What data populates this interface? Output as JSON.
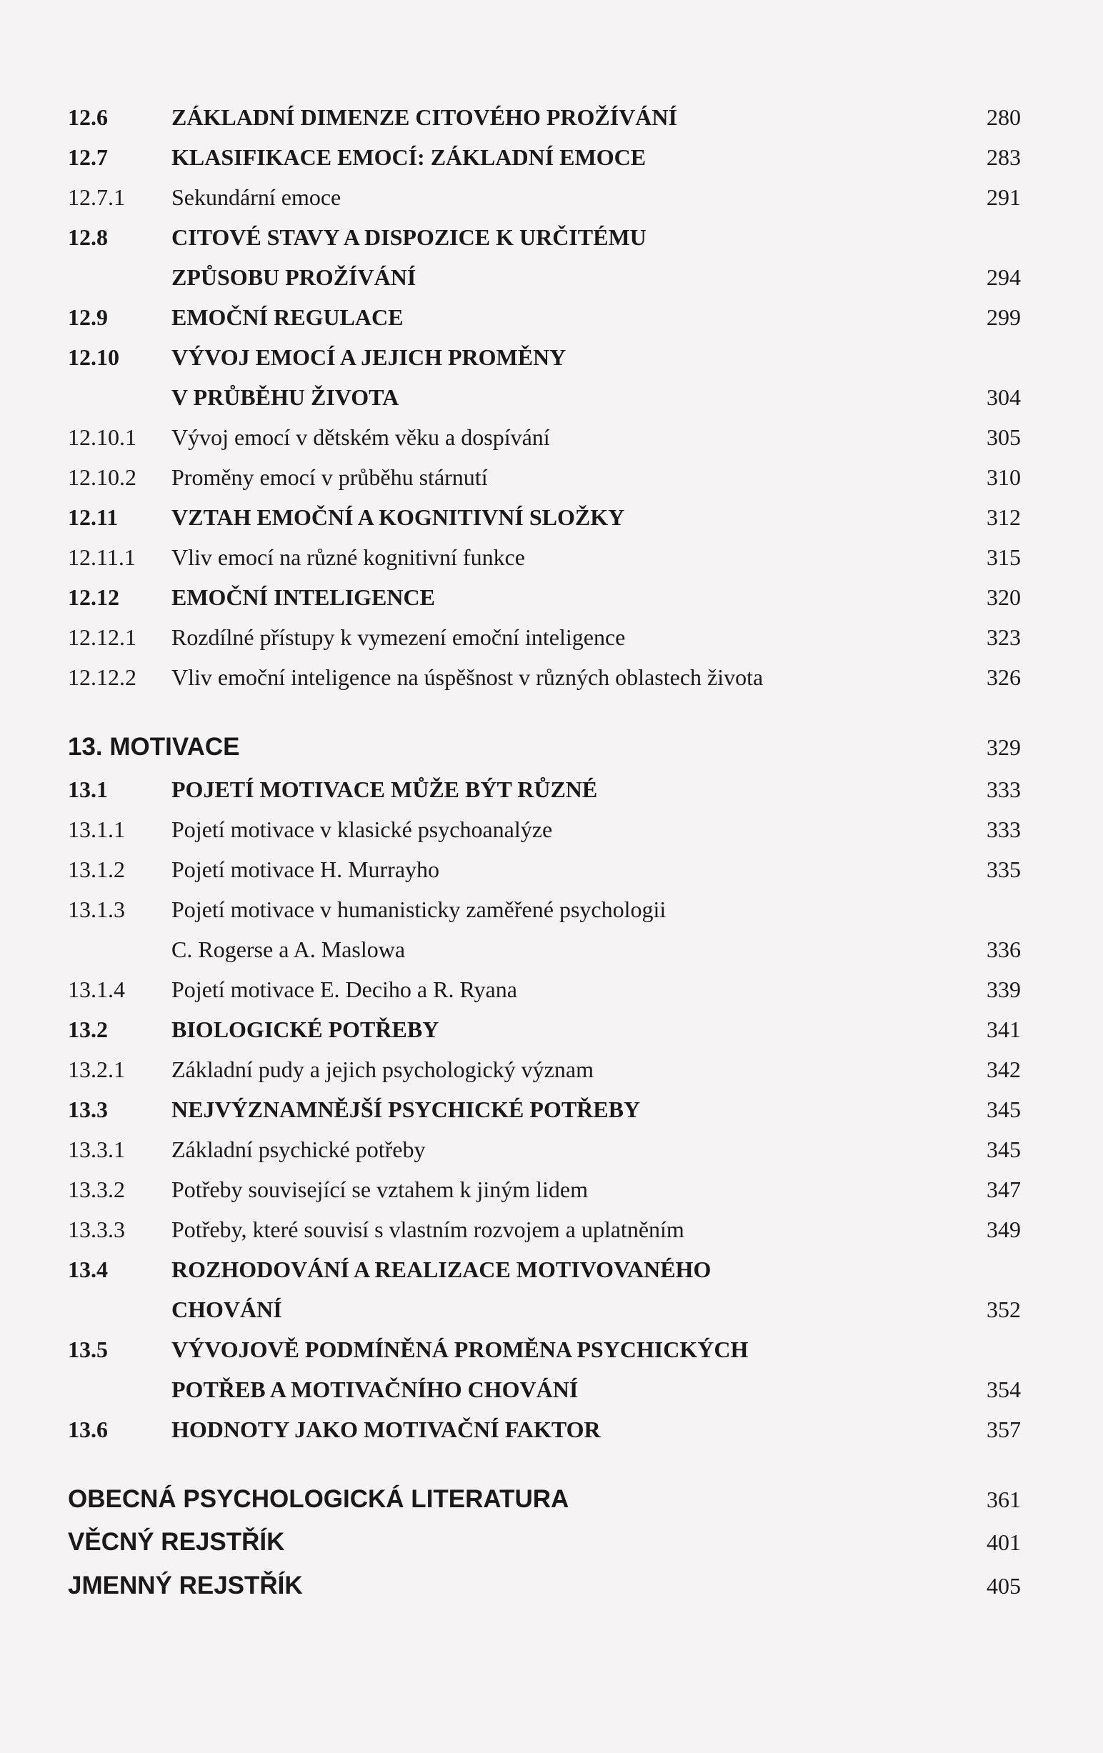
{
  "sections": [
    {
      "entries": [
        {
          "num": "12.6",
          "title": "ZÁKLADNÍ DIMENZE CITOVÉHO PROŽÍVÁNÍ",
          "page": "280",
          "bold": true
        },
        {
          "num": "12.7",
          "title": "KLASIFIKACE EMOCÍ: ZÁKLADNÍ EMOCE",
          "page": "283",
          "bold": true
        },
        {
          "num": "12.7.1",
          "title": "Sekundární emoce",
          "page": "291",
          "bold": false
        },
        {
          "num": "12.8",
          "title": "CITOVÉ STAVY A DISPOZICE K URČITÉMU",
          "cont": "ZPŮSOBU PROŽÍVÁNÍ",
          "page": "294",
          "bold": true
        },
        {
          "num": "12.9",
          "title": "EMOČNÍ REGULACE",
          "page": "299",
          "bold": true
        },
        {
          "num": "12.10",
          "title": "VÝVOJ EMOCÍ A JEJICH PROMĚNY",
          "cont": "V PRŮBĚHU ŽIVOTA",
          "page": "304",
          "bold": true
        },
        {
          "num": "12.10.1",
          "title": "Vývoj emocí v dětském věku a dospívání",
          "page": "305",
          "bold": false
        },
        {
          "num": "12.10.2",
          "title": "Proměny emocí v průběhu stárnutí",
          "page": "310",
          "bold": false
        },
        {
          "num": "12.11",
          "title": "VZTAH EMOČNÍ A KOGNITIVNÍ SLOŽKY",
          "page": "312",
          "bold": true
        },
        {
          "num": "12.11.1",
          "title": "Vliv emocí na různé kognitivní funkce",
          "page": "315",
          "bold": false
        },
        {
          "num": "12.12",
          "title": "EMOČNÍ INTELIGENCE",
          "page": "320",
          "bold": true
        },
        {
          "num": "12.12.1",
          "title": "Rozdílné přístupy k vymezení emoční inteligence",
          "page": "323",
          "bold": false
        },
        {
          "num": "12.12.2",
          "title": "Vliv emoční inteligence na úspěšnost v různých oblastech života",
          "page": "326",
          "bold": false
        }
      ]
    },
    {
      "chapter": {
        "num": "13.",
        "title": "MOTIVACE",
        "page": "329"
      },
      "entries": [
        {
          "num": "13.1",
          "title": "POJETÍ MOTIVACE MŮŽE BÝT RŮZNÉ",
          "page": "333",
          "bold": true
        },
        {
          "num": "13.1.1",
          "title": "Pojetí motivace v klasické psychoanalýze",
          "page": "333",
          "bold": false
        },
        {
          "num": "13.1.2",
          "title": "Pojetí motivace H. Murrayho",
          "page": "335",
          "bold": false
        },
        {
          "num": "13.1.3",
          "title": "Pojetí motivace v humanisticky zaměřené psychologii",
          "cont": "C. Rogerse a A. Maslowa",
          "page": "336",
          "bold": false
        },
        {
          "num": "13.1.4",
          "title": "Pojetí motivace E. Deciho a R. Ryana",
          "page": "339",
          "bold": false
        },
        {
          "num": "13.2",
          "title": "BIOLOGICKÉ POTŘEBY",
          "page": "341",
          "bold": true
        },
        {
          "num": "13.2.1",
          "title": "Základní pudy a jejich psychologický význam",
          "page": "342",
          "bold": false
        },
        {
          "num": "13.3",
          "title": "NEJVÝZNAMNĚJŠÍ PSYCHICKÉ POTŘEBY",
          "page": "345",
          "bold": true
        },
        {
          "num": "13.3.1",
          "title": "Základní psychické potřeby",
          "page": "345",
          "bold": false
        },
        {
          "num": "13.3.2",
          "title": "Potřeby související se vztahem k jiným lidem",
          "page": "347",
          "bold": false
        },
        {
          "num": "13.3.3",
          "title": "Potřeby, které souvisí s vlastním rozvojem a uplatněním",
          "page": "349",
          "bold": false
        },
        {
          "num": "13.4",
          "title": "ROZHODOVÁNÍ A REALIZACE MOTIVOVANÉHO",
          "cont": "CHOVÁNÍ",
          "page": "352",
          "bold": true
        },
        {
          "num": "13.5",
          "title": "VÝVOJOVĚ PODMÍNĚNÁ PROMĚNA PSYCHICKÝCH",
          "cont": "POTŘEB A MOTIVAČNÍHO CHOVÁNÍ",
          "page": "354",
          "bold": true
        },
        {
          "num": "13.6",
          "title": "HODNOTY JAKO MOTIVAČNÍ FAKTOR",
          "page": "357",
          "bold": true
        }
      ]
    }
  ],
  "endmatter": [
    {
      "title": "OBECNÁ PSYCHOLOGICKÁ LITERATURA",
      "page": "361"
    },
    {
      "title": "VĚCNÝ REJSTŘÍK",
      "page": "401"
    },
    {
      "title": "JMENNÝ REJSTŘÍK",
      "page": "405"
    }
  ]
}
